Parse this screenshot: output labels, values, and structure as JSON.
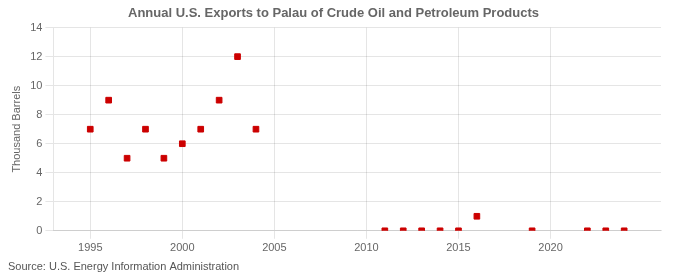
{
  "chart_data": {
    "type": "scatter",
    "title": "Annual U.S. Exports to Palau of Crude Oil and Petroleum Products",
    "y_label": "Thousand Barrels",
    "annotations": [
      "Source: U.S. Energy Information Administration"
    ],
    "x": [
      1995,
      1996,
      1997,
      1998,
      1999,
      2000,
      2001,
      2002,
      2003,
      2004,
      2011,
      2012,
      2013,
      2014,
      2015,
      2016,
      2019,
      2022,
      2023,
      2024
    ],
    "values": [
      7,
      9,
      5,
      7,
      5,
      6,
      7,
      9,
      12,
      7,
      0,
      0,
      0,
      0,
      0,
      1,
      0,
      0,
      0,
      0
    ],
    "color": "#cc0000",
    "marker": "square",
    "xlim": [
      1993,
      2026
    ],
    "xticks": [
      1995,
      2000,
      2005,
      2010,
      2015,
      2020
    ],
    "ylim": [
      0,
      14
    ],
    "yticks": [
      0,
      2,
      4,
      6,
      8,
      10,
      12,
      14
    ],
    "grid": true
  }
}
